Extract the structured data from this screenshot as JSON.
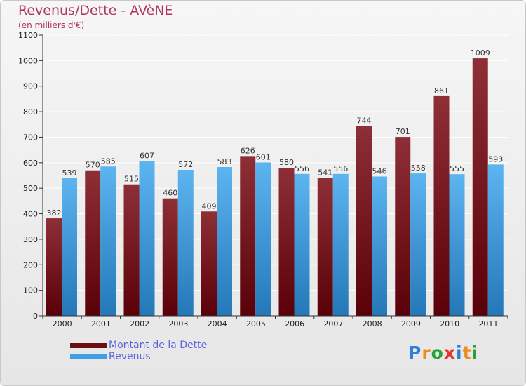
{
  "title": "Revenus/Dette - AVèNE",
  "subtitle": "(en milliers d'€)",
  "brand": {
    "text": "Proxiti",
    "letters": [
      {
        "ch": "P",
        "color": "#2f7fd8"
      },
      {
        "ch": "r",
        "color": "#f08a1a"
      },
      {
        "ch": "o",
        "color": "#27a33a"
      },
      {
        "ch": "x",
        "color": "#e8342a"
      },
      {
        "ch": "i",
        "color": "#2f7fd8"
      },
      {
        "ch": "t",
        "color": "#f08a1a"
      },
      {
        "ch": "i",
        "color": "#27a33a"
      }
    ]
  },
  "legend": [
    {
      "label": "Montant de la Dette",
      "color": "#6b0f14"
    },
    {
      "label": "Revenus",
      "color": "#3d9fe6"
    }
  ],
  "chart_data": {
    "type": "bar",
    "title": "Revenus/Dette - AVèNE",
    "subtitle": "(en milliers d'€)",
    "categories": [
      "2000",
      "2001",
      "2002",
      "2003",
      "2004",
      "2005",
      "2006",
      "2007",
      "2008",
      "2009",
      "2010",
      "2011"
    ],
    "series": [
      {
        "name": "Montant de la Dette",
        "color": "#6b0f14",
        "values": [
          382,
          570,
          515,
          460,
          409,
          626,
          580,
          541,
          744,
          701,
          861,
          1009
        ]
      },
      {
        "name": "Revenus",
        "color": "#3d9fe6",
        "values": [
          539,
          585,
          607,
          572,
          583,
          601,
          556,
          556,
          546,
          558,
          555,
          593
        ]
      }
    ],
    "ylim": [
      0,
      1100
    ],
    "yticks": [
      0,
      100,
      200,
      300,
      400,
      500,
      600,
      700,
      800,
      900,
      1000,
      1100
    ],
    "grid": true,
    "legend_position": "bottom-left"
  }
}
